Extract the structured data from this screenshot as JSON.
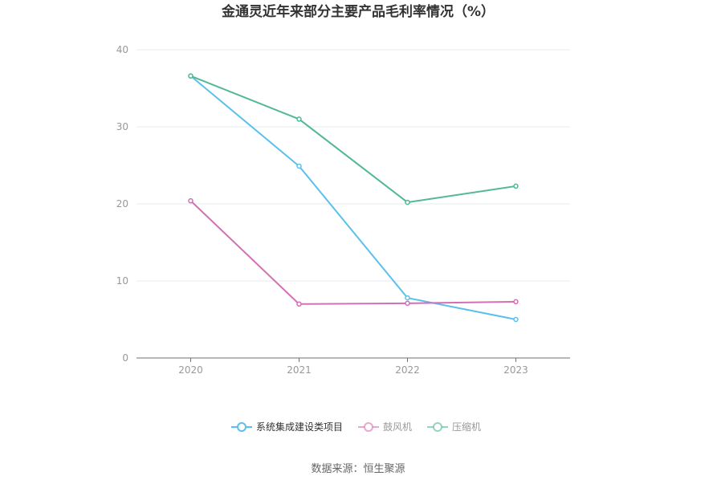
{
  "chart_data": {
    "type": "line",
    "title": "金通灵近年来部分主要产品毛利率情况（%）",
    "x": [
      "2020",
      "2021",
      "2022",
      "2023"
    ],
    "ylim": [
      0,
      40
    ],
    "yticks": [
      "0",
      "10",
      "20",
      "30",
      "40"
    ],
    "grid": true,
    "legend_position": "bottom",
    "series": [
      {
        "name": "系统集成建设类项目",
        "color": "#5bc0eb",
        "values": [
          36.6,
          24.9,
          7.8,
          5.0
        ]
      },
      {
        "name": "鼓风机",
        "color": "#d36fb4",
        "values": [
          20.4,
          7.0,
          7.1,
          7.3
        ]
      },
      {
        "name": "压缩机",
        "color": "#52b896",
        "values": [
          36.6,
          31.0,
          20.2,
          22.3
        ]
      }
    ]
  },
  "footer": {
    "source": "数据来源：恒生聚源"
  }
}
